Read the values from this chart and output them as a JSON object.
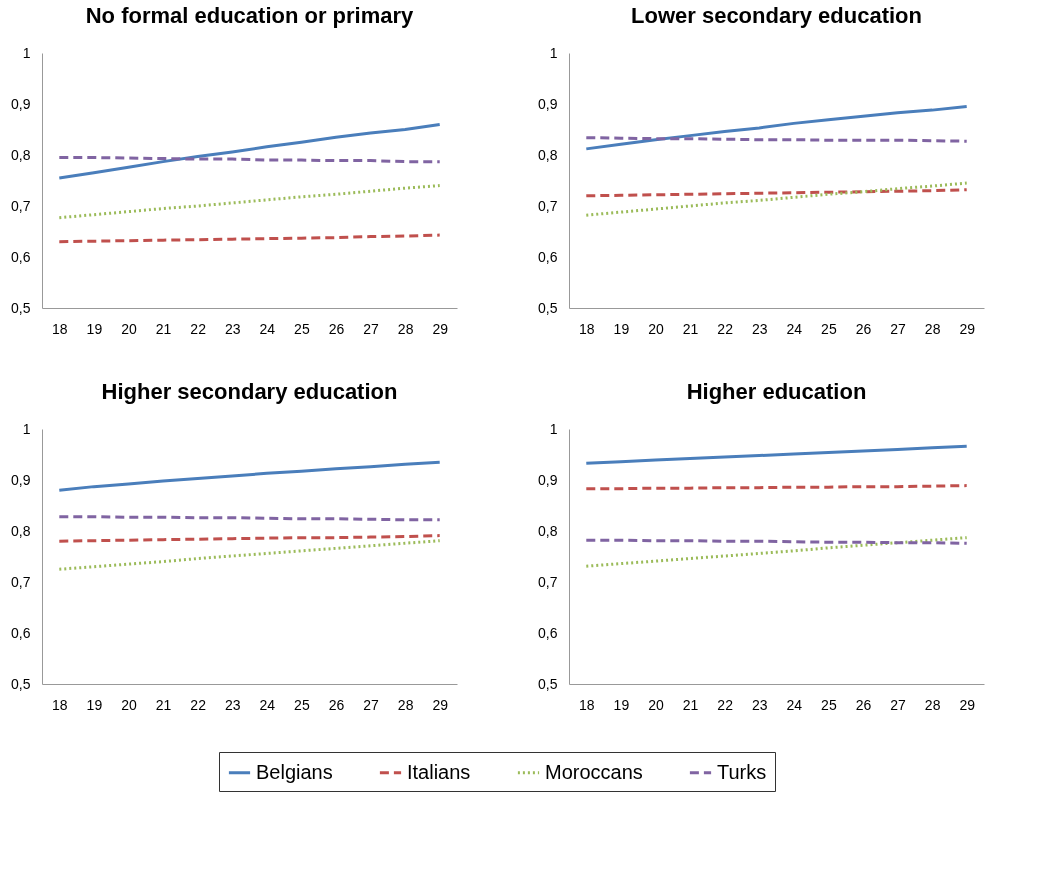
{
  "chart_data": [
    {
      "type": "line",
      "legend": "bottom",
      "title": "No formal education or primary",
      "categories": [
        "18",
        "19",
        "20",
        "21",
        "22",
        "23",
        "24",
        "25",
        "26",
        "27",
        "28",
        "29"
      ],
      "ylim": [
        0.5,
        1
      ],
      "yticks": [
        {
          "value": 0.5,
          "label": "0,5"
        },
        {
          "value": 0.6,
          "label": "0,6"
        },
        {
          "value": 0.7,
          "label": "0,7"
        },
        {
          "value": 0.8,
          "label": "0,8"
        },
        {
          "value": 0.9,
          "label": "0,9"
        },
        {
          "value": 1,
          "label": "1"
        }
      ],
      "series": [
        {
          "name": "Belgians",
          "color": "#4a7ebb",
          "line_style": "solid",
          "values": [
            0.755,
            0.765,
            0.776,
            0.787,
            0.797,
            0.806,
            0.816,
            0.825,
            0.835,
            0.843,
            0.85,
            0.86
          ]
        },
        {
          "name": "Italians",
          "color": "#c0504d",
          "line_style": "dashed",
          "values": [
            0.63,
            0.631,
            0.632,
            0.633,
            0.634,
            0.635,
            0.636,
            0.637,
            0.638,
            0.64,
            0.641,
            0.643
          ]
        },
        {
          "name": "Moroccans",
          "color": "#9bbb59",
          "line_style": "dotted",
          "values": [
            0.677,
            0.683,
            0.689,
            0.695,
            0.7,
            0.706,
            0.712,
            0.718,
            0.723,
            0.729,
            0.735,
            0.74
          ]
        },
        {
          "name": "Turks",
          "color": "#8064a2",
          "line_style": "dashed",
          "values": [
            0.795,
            0.795,
            0.794,
            0.793,
            0.792,
            0.792,
            0.79,
            0.79,
            0.789,
            0.789,
            0.787,
            0.787
          ]
        }
      ]
    },
    {
      "type": "line",
      "legend": "bottom",
      "title": "Lower secondary education",
      "categories": [
        "18",
        "19",
        "20",
        "21",
        "22",
        "23",
        "24",
        "25",
        "26",
        "27",
        "28",
        "29"
      ],
      "ylim": [
        0.5,
        1
      ],
      "yticks": [
        {
          "value": 0.5,
          "label": "0,5"
        },
        {
          "value": 0.6,
          "label": "0,6"
        },
        {
          "value": 0.7,
          "label": "0,7"
        },
        {
          "value": 0.8,
          "label": "0,8"
        },
        {
          "value": 0.9,
          "label": "0,9"
        },
        {
          "value": 1,
          "label": "1"
        }
      ],
      "series": [
        {
          "name": "Belgians",
          "color": "#4a7ebb",
          "line_style": "solid",
          "values": [
            0.812,
            0.821,
            0.83,
            0.838,
            0.846,
            0.853,
            0.862,
            0.869,
            0.876,
            0.883,
            0.888,
            0.895
          ]
        },
        {
          "name": "Italians",
          "color": "#c0504d",
          "line_style": "dashed",
          "values": [
            0.72,
            0.721,
            0.722,
            0.723,
            0.724,
            0.725,
            0.726,
            0.727,
            0.728,
            0.729,
            0.73,
            0.732
          ]
        },
        {
          "name": "Moroccans",
          "color": "#9bbb59",
          "line_style": "dotted",
          "values": [
            0.682,
            0.688,
            0.694,
            0.7,
            0.706,
            0.711,
            0.717,
            0.723,
            0.728,
            0.734,
            0.739,
            0.745
          ]
        },
        {
          "name": "Turks",
          "color": "#8064a2",
          "line_style": "dashed",
          "values": [
            0.834,
            0.833,
            0.832,
            0.832,
            0.831,
            0.83,
            0.83,
            0.829,
            0.829,
            0.829,
            0.828,
            0.827
          ]
        }
      ]
    },
    {
      "type": "line",
      "legend": "bottom",
      "title": "Higher secondary education",
      "categories": [
        "18",
        "19",
        "20",
        "21",
        "22",
        "23",
        "24",
        "25",
        "26",
        "27",
        "28",
        "29"
      ],
      "ylim": [
        0.5,
        1
      ],
      "yticks": [
        {
          "value": 0.5,
          "label": "0,5"
        },
        {
          "value": 0.6,
          "label": "0,6"
        },
        {
          "value": 0.7,
          "label": "0,7"
        },
        {
          "value": 0.8,
          "label": "0,8"
        },
        {
          "value": 0.9,
          "label": "0,9"
        },
        {
          "value": 1,
          "label": "1"
        }
      ],
      "series": [
        {
          "name": "Belgians",
          "color": "#4a7ebb",
          "line_style": "solid",
          "values": [
            0.88,
            0.887,
            0.892,
            0.898,
            0.903,
            0.908,
            0.913,
            0.917,
            0.922,
            0.926,
            0.931,
            0.935
          ]
        },
        {
          "name": "Italians",
          "color": "#c0504d",
          "line_style": "dashed",
          "values": [
            0.78,
            0.781,
            0.782,
            0.783,
            0.784,
            0.785,
            0.786,
            0.787,
            0.787,
            0.788,
            0.789,
            0.791
          ]
        },
        {
          "name": "Moroccans",
          "color": "#9bbb59",
          "line_style": "dotted",
          "values": [
            0.725,
            0.73,
            0.735,
            0.74,
            0.746,
            0.751,
            0.756,
            0.761,
            0.766,
            0.771,
            0.776,
            0.781
          ]
        },
        {
          "name": "Turks",
          "color": "#8064a2",
          "line_style": "dashed",
          "values": [
            0.828,
            0.828,
            0.827,
            0.827,
            0.826,
            0.826,
            0.825,
            0.824,
            0.824,
            0.823,
            0.822,
            0.822
          ]
        }
      ]
    },
    {
      "type": "line",
      "title": "Higher education",
      "categories": [
        "18",
        "19",
        "20",
        "21",
        "22",
        "23",
        "24",
        "25",
        "26",
        "27",
        "28",
        "29"
      ],
      "ylim": [
        0.5,
        1
      ],
      "yticks": [
        {
          "value": 0.5,
          "label": "0,5"
        },
        {
          "value": 0.6,
          "label": "0,6"
        },
        {
          "value": 0.7,
          "label": "0,7"
        },
        {
          "value": 0.8,
          "label": "0,8"
        },
        {
          "value": 0.9,
          "label": "0,9"
        },
        {
          "value": 1,
          "label": "1"
        }
      ],
      "legend": "bottom",
      "series": [
        {
          "name": "Belgians",
          "color": "#4a7ebb",
          "line_style": "solid",
          "values": [
            0.933,
            0.936,
            0.939,
            0.942,
            0.945,
            0.948,
            0.951,
            0.954,
            0.957,
            0.96,
            0.963,
            0.966
          ]
        },
        {
          "name": "Italians",
          "color": "#c0504d",
          "line_style": "dashed",
          "values": [
            0.883,
            0.883,
            0.884,
            0.884,
            0.885,
            0.885,
            0.886,
            0.886,
            0.887,
            0.887,
            0.888,
            0.889
          ]
        },
        {
          "name": "Moroccans",
          "color": "#9bbb59",
          "line_style": "dotted",
          "values": [
            0.731,
            0.736,
            0.741,
            0.746,
            0.751,
            0.756,
            0.761,
            0.767,
            0.772,
            0.777,
            0.782,
            0.787
          ]
        },
        {
          "name": "Turks",
          "color": "#8064a2",
          "line_style": "dashed",
          "values": [
            0.782,
            0.782,
            0.781,
            0.781,
            0.78,
            0.78,
            0.779,
            0.778,
            0.778,
            0.777,
            0.777,
            0.776
          ]
        }
      ]
    }
  ]
}
